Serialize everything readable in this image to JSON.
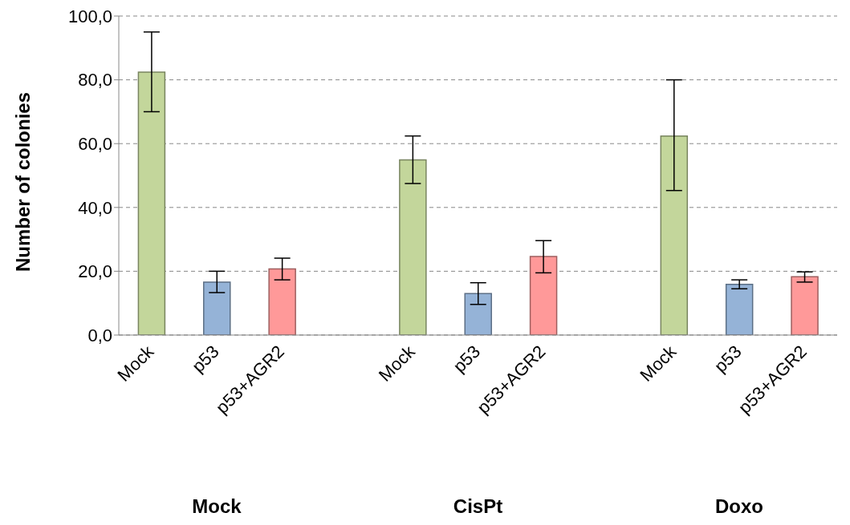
{
  "chart_data": {
    "type": "bar",
    "ylabel": "Number of colonies",
    "categories": [
      "Mock",
      "p53",
      "p53+AGR2",
      null,
      "Mock",
      "p53",
      "p53+AGR2",
      null,
      "Mock",
      "p53",
      "p53+AGR2"
    ],
    "values": [
      82.4,
      16.6,
      20.7,
      null,
      54.9,
      13.0,
      24.6,
      null,
      62.4,
      15.9,
      18.3
    ],
    "errors": [
      [
        70,
        95
      ],
      [
        13.3,
        20
      ],
      [
        17.3,
        24.1
      ],
      null,
      [
        47.5,
        62.4
      ],
      [
        9.6,
        16.4
      ],
      [
        19.5,
        29.6
      ],
      null,
      [
        45.3,
        80
      ],
      [
        14.5,
        17.3
      ],
      [
        16.6,
        19.8
      ]
    ],
    "colors": [
      "#c3d69b",
      "#95b3d7",
      "#ff9999",
      "#ffffff",
      "#c3d69b",
      "#95b3d7",
      "#ff9999",
      "#ffffff",
      "#c3d69b",
      "#95b3d7",
      "#ff9999"
    ],
    "ylim": [
      0,
      100
    ],
    "yticks": [
      {
        "value": 0,
        "label": "0,0"
      },
      {
        "value": 20,
        "label": "20,0"
      },
      {
        "value": 40,
        "label": "40,0"
      },
      {
        "value": 60,
        "label": "60,0"
      },
      {
        "value": 80,
        "label": "80,0"
      },
      {
        "value": 100,
        "label": "100,0"
      }
    ],
    "grid": "y",
    "legend": false,
    "annotations": [
      "Mock",
      "CisPt",
      "Doxo"
    ]
  }
}
